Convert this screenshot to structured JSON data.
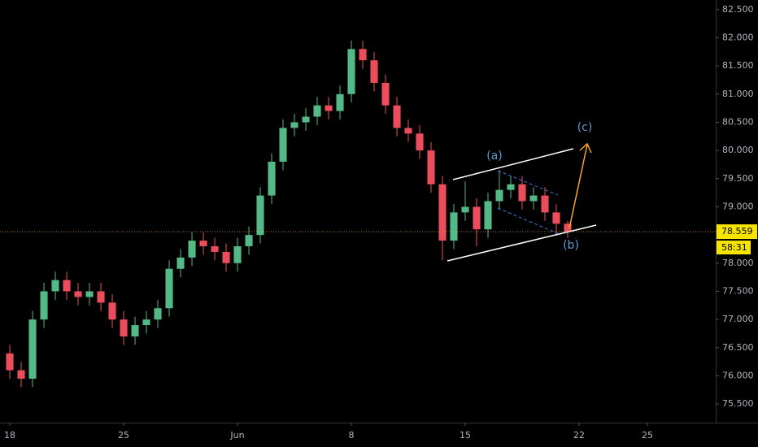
{
  "chart_data": {
    "type": "candlestick",
    "x": [
      0,
      0.5,
      1,
      1.5,
      2,
      2.5,
      3,
      3.5,
      4,
      4.5,
      5,
      5.5,
      6,
      6.5,
      7,
      7.5,
      8,
      8.5,
      9,
      9.5,
      10,
      10.5,
      11,
      11.5,
      12,
      12.5,
      13,
      13.5,
      14,
      14.5,
      15,
      15.5,
      16,
      16.5,
      17,
      17.5,
      18,
      18.5,
      19,
      19.5,
      20,
      20.5,
      21,
      21.5,
      22,
      22.5,
      23,
      23.5,
      24,
      24.5
    ],
    "open": [
      76.4,
      76.1,
      75.95,
      77.0,
      77.5,
      77.7,
      77.5,
      77.4,
      77.5,
      77.3,
      77.0,
      76.7,
      76.9,
      77.0,
      77.2,
      77.9,
      78.1,
      78.4,
      78.3,
      78.2,
      78.0,
      78.3,
      78.5,
      79.2,
      79.8,
      80.4,
      80.5,
      80.6,
      80.8,
      80.7,
      81.0,
      81.8,
      81.6,
      81.2,
      80.8,
      80.4,
      80.3,
      80.0,
      79.4,
      78.4,
      78.9,
      79.0,
      78.6,
      79.1,
      79.3,
      79.4,
      79.1,
      79.2,
      78.9,
      78.7
    ],
    "high": [
      76.55,
      76.25,
      77.15,
      77.65,
      77.85,
      77.85,
      77.65,
      77.65,
      77.65,
      77.45,
      77.15,
      77.05,
      77.15,
      77.35,
      78.05,
      78.25,
      78.55,
      78.55,
      78.45,
      78.35,
      78.45,
      78.65,
      79.35,
      79.95,
      80.55,
      80.65,
      80.75,
      80.95,
      80.95,
      81.15,
      81.95,
      81.95,
      81.75,
      81.35,
      80.95,
      80.55,
      80.45,
      80.15,
      79.55,
      79.05,
      79.45,
      79.15,
      79.25,
      79.65,
      79.55,
      79.55,
      79.35,
      79.35,
      79.05,
      78.75
    ],
    "low": [
      75.95,
      75.8,
      75.8,
      76.85,
      77.35,
      77.35,
      77.25,
      77.25,
      77.15,
      76.85,
      76.55,
      76.55,
      76.75,
      76.85,
      77.05,
      77.75,
      77.95,
      78.15,
      78.05,
      77.85,
      77.85,
      78.15,
      78.35,
      79.05,
      79.65,
      80.25,
      80.35,
      80.45,
      80.55,
      80.55,
      80.85,
      81.45,
      81.05,
      80.65,
      80.25,
      80.15,
      79.85,
      79.25,
      78.05,
      78.25,
      78.75,
      78.3,
      78.45,
      78.95,
      79.15,
      78.95,
      78.95,
      78.75,
      78.5,
      78.45
    ],
    "close": [
      76.1,
      75.95,
      77.0,
      77.5,
      77.7,
      77.5,
      77.4,
      77.5,
      77.3,
      77.0,
      76.7,
      76.9,
      77.0,
      77.2,
      77.9,
      78.1,
      78.4,
      78.3,
      78.2,
      78.0,
      78.3,
      78.5,
      79.2,
      79.8,
      80.4,
      80.5,
      80.6,
      80.8,
      80.7,
      81.0,
      81.8,
      81.6,
      81.2,
      80.8,
      80.4,
      80.3,
      80.0,
      79.4,
      78.4,
      78.9,
      79.0,
      78.6,
      79.1,
      79.3,
      79.4,
      79.1,
      79.2,
      78.9,
      78.7,
      78.559
    ],
    "up_color": "#53b987",
    "down_color": "#eb4d5c",
    "xlim": [
      -0.43,
      31
    ],
    "xticks": [
      {
        "value": 0,
        "label": "18"
      },
      {
        "value": 5,
        "label": "25"
      },
      {
        "value": 10,
        "label": "Jun"
      },
      {
        "value": 15,
        "label": "8"
      },
      {
        "value": 20,
        "label": "15"
      },
      {
        "value": 25,
        "label": "22"
      },
      {
        "value": 28,
        "label": "25"
      }
    ],
    "ylim": [
      75.17,
      82.67
    ],
    "yticks": [
      {
        "value": 75.5,
        "label": "75.500"
      },
      {
        "value": 76,
        "label": "76.000"
      },
      {
        "value": 76.5,
        "label": "76.500"
      },
      {
        "value": 77,
        "label": "77.000"
      },
      {
        "value": 77.5,
        "label": "77.500"
      },
      {
        "value": 78,
        "label": "78.000"
      },
      {
        "value": 78.5,
        "label": "78.500"
      },
      {
        "value": 79,
        "label": "79.000"
      },
      {
        "value": 79.5,
        "label": "79.500"
      },
      {
        "value": 80,
        "label": "80.000"
      },
      {
        "value": 80.5,
        "label": "80.500"
      },
      {
        "value": 81,
        "label": "81.000"
      },
      {
        "value": 81.5,
        "label": "81.500"
      },
      {
        "value": 82,
        "label": "82.000"
      },
      {
        "value": 82.5,
        "label": "82.500"
      }
    ],
    "last_price": 78.559,
    "countdown": "58:31",
    "annotations": [
      "(a)",
      "(b)",
      "(c)"
    ]
  }
}
